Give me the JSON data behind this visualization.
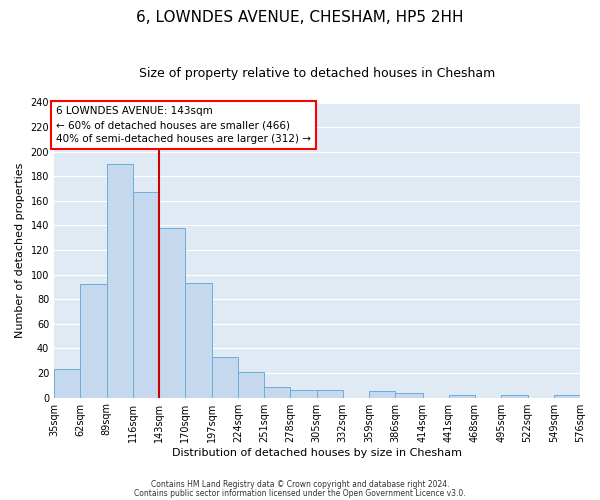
{
  "title": "6, LOWNDES AVENUE, CHESHAM, HP5 2HH",
  "subtitle": "Size of property relative to detached houses in Chesham",
  "xlabel": "Distribution of detached houses by size in Chesham",
  "ylabel": "Number of detached properties",
  "bin_edges": [
    35,
    62,
    89,
    116,
    143,
    170,
    197,
    224,
    251,
    278,
    305,
    332,
    359,
    386,
    414,
    441,
    468,
    495,
    522,
    549,
    576
  ],
  "bar_heights": [
    23,
    92,
    190,
    167,
    138,
    93,
    33,
    21,
    9,
    6,
    6,
    0,
    5,
    4,
    0,
    2,
    0,
    2,
    0,
    2
  ],
  "bar_color": "#c5d8ed",
  "bar_edge_color": "#6aaed6",
  "bg_color": "#e0eaf4",
  "grid_color": "#ffffff",
  "vline_x": 143,
  "vline_color": "#cc0000",
  "ylim": [
    0,
    240
  ],
  "yticks": [
    0,
    20,
    40,
    60,
    80,
    100,
    120,
    140,
    160,
    180,
    200,
    220,
    240
  ],
  "annotation_title": "6 LOWNDES AVENUE: 143sqm",
  "annotation_line1": "← 60% of detached houses are smaller (466)",
  "annotation_line2": "40% of semi-detached houses are larger (312) →",
  "footer1": "Contains HM Land Registry data © Crown copyright and database right 2024.",
  "footer2": "Contains public sector information licensed under the Open Government Licence v3.0.",
  "title_fontsize": 11,
  "subtitle_fontsize": 9,
  "tick_fontsize": 7,
  "ylabel_fontsize": 8,
  "xlabel_fontsize": 8,
  "annotation_fontsize": 7.5,
  "footer_fontsize": 5.5
}
